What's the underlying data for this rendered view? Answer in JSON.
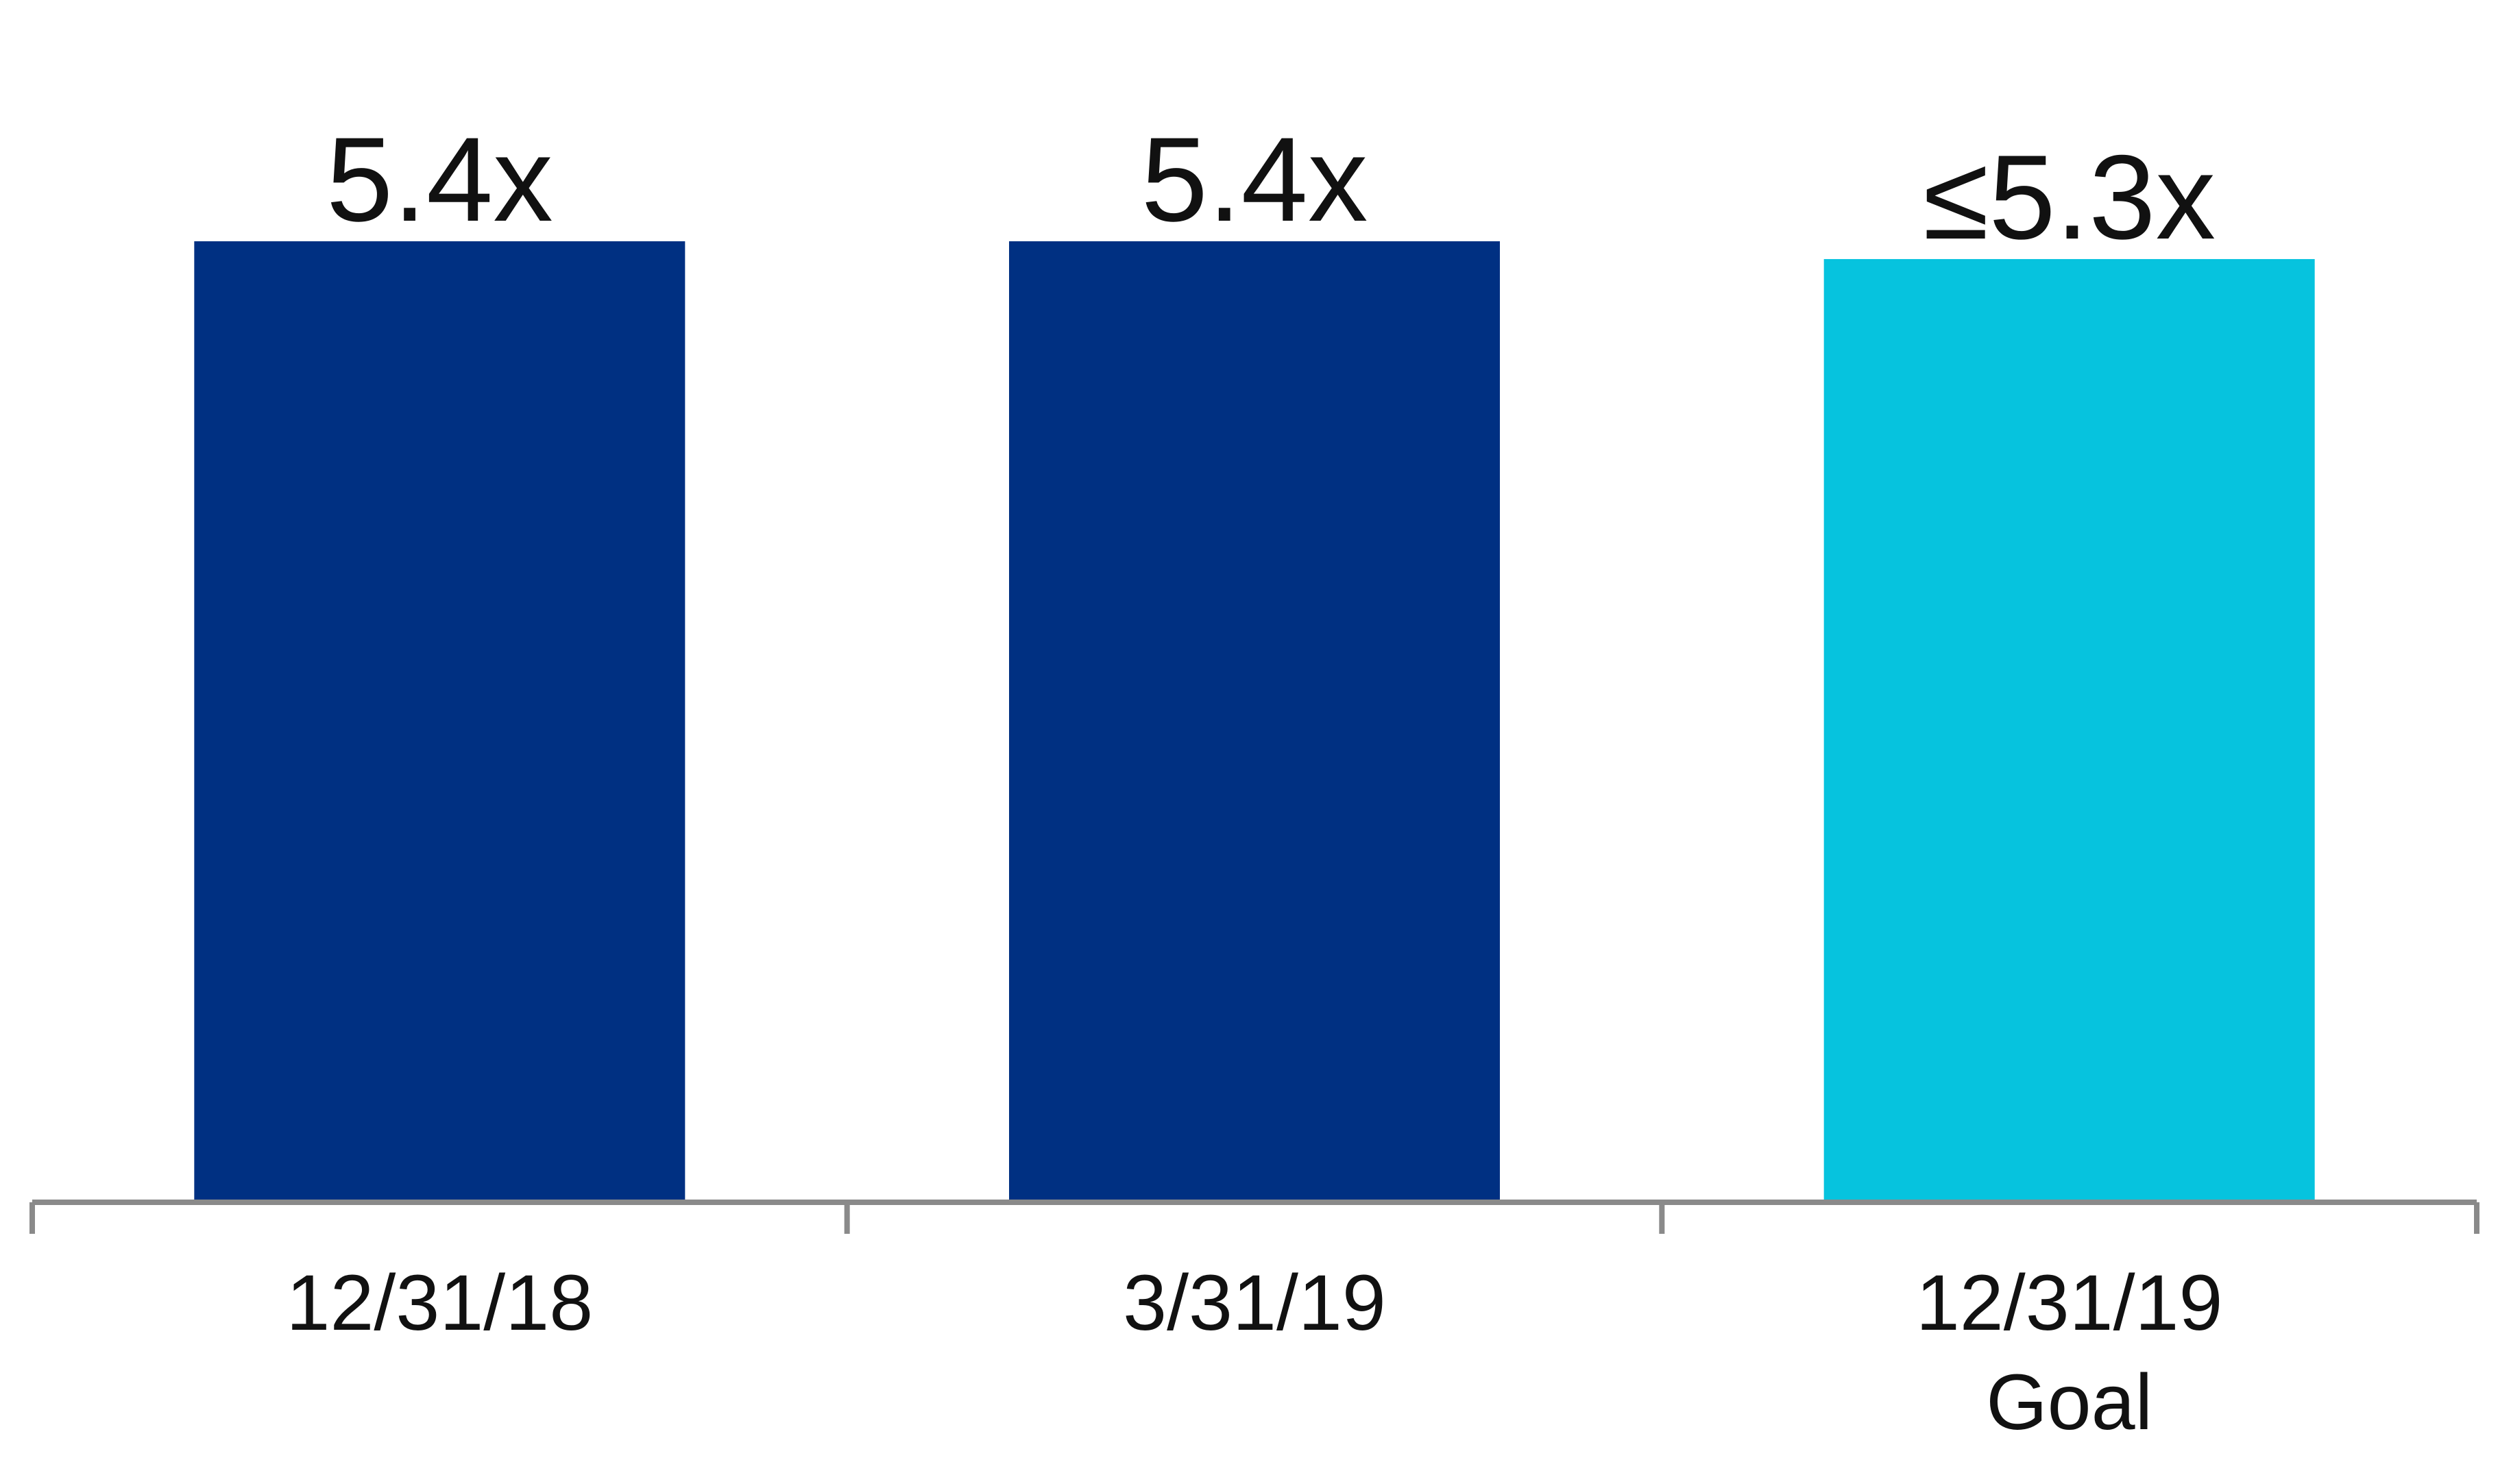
{
  "chart_data": {
    "type": "bar",
    "categories": [
      "12/31/18",
      "3/31/19",
      "12/31/19"
    ],
    "category_sublabels": [
      "",
      "",
      "Goal"
    ],
    "values": [
      5.4,
      5.4,
      5.3
    ],
    "data_labels": [
      "5.4x",
      "5.4x",
      "≤5.3x"
    ],
    "colors": [
      "#003082",
      "#003082",
      "#06C3DE"
    ],
    "axis_color": "#8A8A8A",
    "title": "",
    "xlabel": "",
    "ylabel": "",
    "ylim": [
      0,
      5.4
    ],
    "grid": false,
    "legend": "none"
  }
}
